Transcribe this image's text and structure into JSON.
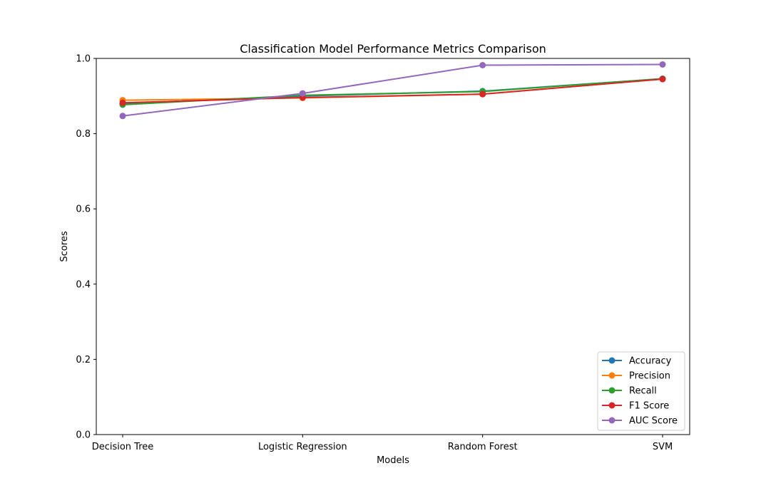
{
  "chart_data": {
    "type": "line",
    "title": "Classification Model Performance Metrics Comparison",
    "xlabel": "Models",
    "ylabel": "Scores",
    "categories": [
      "Decision Tree",
      "Logistic Regression",
      "Random Forest",
      "SVM"
    ],
    "ylim": [
      0,
      1.0
    ],
    "yticks": [
      "0.0",
      "0.2",
      "0.4",
      "0.6",
      "0.8",
      "1.0"
    ],
    "grid": false,
    "legend_position": "lower-right",
    "series": [
      {
        "name": "Accuracy",
        "color": "#1f77b4",
        "values": [
          0.88,
          0.9,
          0.913,
          0.946
        ]
      },
      {
        "name": "Precision",
        "color": "#ff7f0e",
        "values": [
          0.889,
          0.895,
          0.905,
          0.945
        ]
      },
      {
        "name": "Recall",
        "color": "#2ca02c",
        "values": [
          0.877,
          0.902,
          0.912,
          0.946
        ]
      },
      {
        "name": "F1 Score",
        "color": "#d62728",
        "values": [
          0.882,
          0.896,
          0.905,
          0.945
        ]
      },
      {
        "name": "AUC Score",
        "color": "#9467bd",
        "values": [
          0.847,
          0.907,
          0.982,
          0.984
        ]
      }
    ]
  }
}
